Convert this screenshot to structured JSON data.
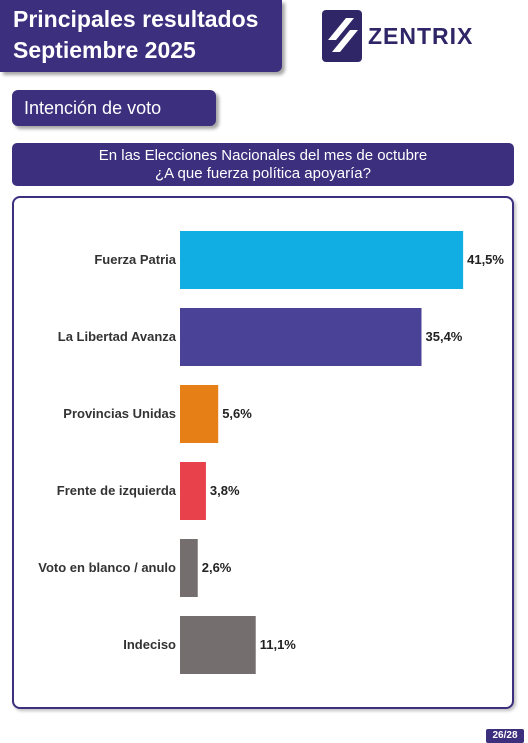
{
  "header": {
    "title_line1": "Principales resultados",
    "title_line2": "Septiembre 2025"
  },
  "brand": {
    "name": "ZENTRIX",
    "logo_icon": "zentrix-stripes-logo"
  },
  "section": {
    "label": "Intención de voto"
  },
  "question": {
    "line1": "En las Elecciones Nacionales del mes de octubre",
    "line2": "¿A que fuerza política apoyaría?"
  },
  "chart_data": {
    "type": "bar",
    "orientation": "horizontal",
    "categories": [
      "Fuerza Patria",
      "La Libertad Avanza",
      "Provincias Unidas",
      "Frente de izquierda",
      "Voto en blanco / anulo",
      "Indeciso"
    ],
    "values": [
      41.5,
      35.4,
      5.6,
      3.8,
      2.6,
      11.1
    ],
    "value_labels": [
      "41,5%",
      "35,4%",
      "5,6%",
      "3,8%",
      "2,6%",
      "11,1%"
    ],
    "colors": [
      "#10aee3",
      "#4a4297",
      "#e57f16",
      "#e8414c",
      "#756e6e",
      "#756e6e"
    ],
    "unit": "%",
    "xlim": [
      0,
      45
    ],
    "grid": false,
    "legend": "none"
  },
  "footer": {
    "page": "26/28"
  },
  "colors": {
    "primary": "#3b2f7e",
    "text": "#333333"
  }
}
